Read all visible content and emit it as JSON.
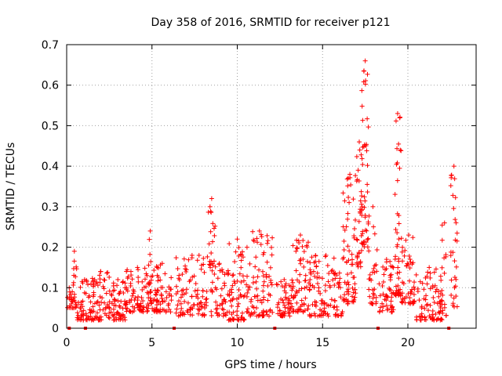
{
  "chart_data": {
    "type": "scatter",
    "title": "Day 358 of 2016, SRMTID for receiver p121",
    "xlabel": "GPS time / hours",
    "ylabel": "SRMTID / TECUs",
    "xlim": [
      0,
      24
    ],
    "ylim": [
      0,
      0.7
    ],
    "x_ticks": [
      0,
      5,
      10,
      15,
      20
    ],
    "x_tick_labels": [
      "0",
      "5",
      "10",
      "15",
      "20"
    ],
    "y_ticks": [
      0,
      0.1,
      0.2,
      0.3,
      0.4,
      0.5,
      0.6,
      0.7
    ],
    "y_tick_labels": [
      "0",
      "0.1",
      "0.2",
      "0.3",
      "0.4",
      "0.5",
      "0.6",
      "0.7"
    ],
    "grid": true,
    "marker": "plus",
    "color": "#ff0000",
    "series_name": "SRMTID",
    "gap_markers_x": [
      0.15,
      1.1,
      6.3,
      12.2,
      18.25,
      22.4
    ],
    "clusters": [
      {
        "x_start": 0.0,
        "x_end": 0.3,
        "y_min": 0.05,
        "y_max": 0.1,
        "count": 12
      },
      {
        "x_start": 0.3,
        "x_end": 0.6,
        "y_min": 0.05,
        "y_max": 0.19,
        "count": 22
      },
      {
        "x_start": 0.6,
        "x_end": 1.5,
        "y_min": 0.02,
        "y_max": 0.12,
        "count": 50
      },
      {
        "x_start": 1.5,
        "x_end": 2.5,
        "y_min": 0.02,
        "y_max": 0.14,
        "count": 60
      },
      {
        "x_start": 2.5,
        "x_end": 3.5,
        "y_min": 0.02,
        "y_max": 0.12,
        "count": 60
      },
      {
        "x_start": 3.5,
        "x_end": 4.8,
        "y_min": 0.04,
        "y_max": 0.15,
        "count": 75
      },
      {
        "x_start": 4.8,
        "x_end": 5.0,
        "y_min": 0.06,
        "y_max": 0.24,
        "count": 18
      },
      {
        "x_start": 5.0,
        "x_end": 6.2,
        "y_min": 0.04,
        "y_max": 0.16,
        "count": 65
      },
      {
        "x_start": 6.4,
        "x_end": 8.3,
        "y_min": 0.03,
        "y_max": 0.18,
        "count": 95
      },
      {
        "x_start": 8.3,
        "x_end": 8.7,
        "y_min": 0.15,
        "y_max": 0.32,
        "count": 18
      },
      {
        "x_start": 8.4,
        "x_end": 9.5,
        "y_min": 0.03,
        "y_max": 0.16,
        "count": 50
      },
      {
        "x_start": 9.5,
        "x_end": 10.5,
        "y_min": 0.02,
        "y_max": 0.22,
        "count": 65
      },
      {
        "x_start": 10.5,
        "x_end": 12.1,
        "y_min": 0.03,
        "y_max": 0.24,
        "count": 90
      },
      {
        "x_start": 12.3,
        "x_end": 13.2,
        "y_min": 0.03,
        "y_max": 0.12,
        "count": 50
      },
      {
        "x_start": 13.2,
        "x_end": 14.2,
        "y_min": 0.04,
        "y_max": 0.23,
        "count": 65
      },
      {
        "x_start": 14.2,
        "x_end": 16.2,
        "y_min": 0.03,
        "y_max": 0.18,
        "count": 110
      },
      {
        "x_start": 16.2,
        "x_end": 17.0,
        "y_min": 0.06,
        "y_max": 0.38,
        "count": 65
      },
      {
        "x_start": 17.0,
        "x_end": 17.3,
        "y_min": 0.15,
        "y_max": 0.46,
        "count": 35
      },
      {
        "x_start": 17.3,
        "x_end": 17.7,
        "y_min": 0.2,
        "y_max": 0.66,
        "count": 45
      },
      {
        "x_start": 17.7,
        "x_end": 18.2,
        "y_min": 0.06,
        "y_max": 0.3,
        "count": 30
      },
      {
        "x_start": 18.3,
        "x_end": 19.2,
        "y_min": 0.04,
        "y_max": 0.17,
        "count": 50
      },
      {
        "x_start": 19.2,
        "x_end": 19.6,
        "y_min": 0.08,
        "y_max": 0.53,
        "count": 45
      },
      {
        "x_start": 19.6,
        "x_end": 20.5,
        "y_min": 0.06,
        "y_max": 0.23,
        "count": 50
      },
      {
        "x_start": 20.5,
        "x_end": 22.0,
        "y_min": 0.02,
        "y_max": 0.15,
        "count": 80
      },
      {
        "x_start": 22.0,
        "x_end": 22.3,
        "y_min": 0.03,
        "y_max": 0.26,
        "count": 15
      },
      {
        "x_start": 22.5,
        "x_end": 22.9,
        "y_min": 0.05,
        "y_max": 0.4,
        "count": 30
      }
    ]
  }
}
